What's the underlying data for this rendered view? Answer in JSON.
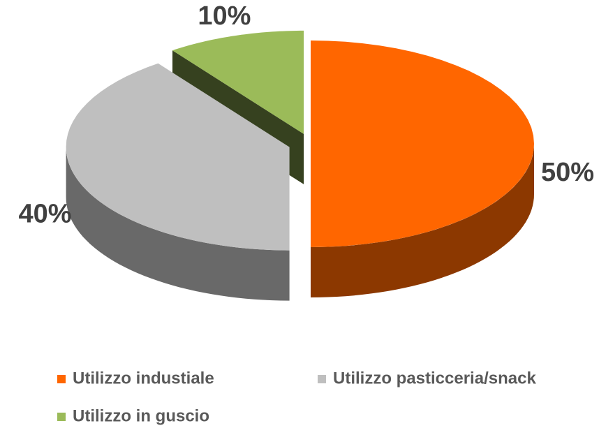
{
  "chart_data": {
    "type": "pie",
    "categories": [
      "Utilizzo industiale",
      "Utilizzo pasticceria/snack",
      "Utilizzo in guscio"
    ],
    "values": [
      50,
      40,
      10
    ],
    "value_labels": [
      "50%",
      "40%",
      "10%"
    ],
    "colors": [
      "#ff6600",
      "#bfbfbf",
      "#9bbb59"
    ],
    "legend": "bottom"
  }
}
